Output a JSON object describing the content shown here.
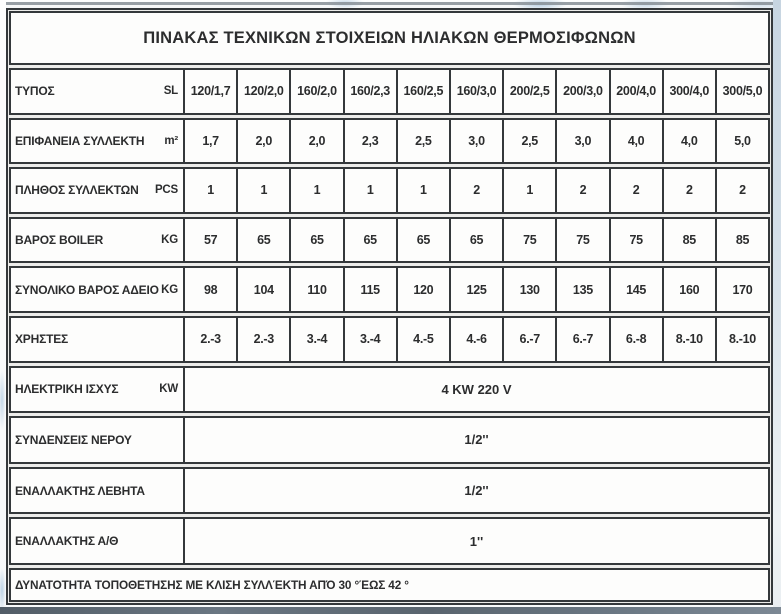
{
  "table": {
    "title": "ΠΙΝΑΚΑΣ ΤΕΧΝΙΚΩΝ ΣΤΟΙΧΕΙΩΝ ΗΛΙΑΚΩΝ ΘΕΡΜΟΣΙΦΩΝΩΝ",
    "rows": [
      {
        "label": "ΤΥΠΟΣ",
        "unit": "SL",
        "values": [
          "120/1,7",
          "120/2,0",
          "160/2,0",
          "160/2,3",
          "160/2,5",
          "160/3,0",
          "200/2,5",
          "200/3,0",
          "200/4,0",
          "300/4,0",
          "300/5,0"
        ]
      },
      {
        "label": "ΕΠΙΦΑΝΕΙΑ ΣΥΛΛΕΚΤΗ",
        "unit": "m²",
        "values": [
          "1,7",
          "2,0",
          "2,0",
          "2,3",
          "2,5",
          "3,0",
          "2,5",
          "3,0",
          "4,0",
          "4,0",
          "5,0"
        ]
      },
      {
        "label": "ΠΛΗΘΟΣ ΣΥΛΛΕΚΤΩΝ",
        "unit": "PCS",
        "values": [
          "1",
          "1",
          "1",
          "1",
          "1",
          "2",
          "1",
          "2",
          "2",
          "2",
          "2"
        ]
      },
      {
        "label": "ΒΑΡΟΣ BOILER",
        "unit": "KG",
        "values": [
          "57",
          "65",
          "65",
          "65",
          "65",
          "65",
          "75",
          "75",
          "75",
          "85",
          "85"
        ]
      },
      {
        "label": "ΣΥΝΟΛΙΚΟ ΒΑΡΟΣ ΑΔΕΙΟ",
        "unit": "KG",
        "values": [
          "98",
          "104",
          "110",
          "115",
          "120",
          "125",
          "130",
          "135",
          "145",
          "160",
          "170"
        ]
      },
      {
        "label": "ΧΡΗΣΤΕΣ",
        "unit": "",
        "values": [
          "2.-3",
          "2.-3",
          "3.-4",
          "3.-4",
          "4.-5",
          "4.-6",
          "6.-7",
          "6.-7",
          "6.-8",
          "8.-10",
          "8.-10"
        ]
      },
      {
        "label": "ΗΛΕΚΤΡΙΚΗ ΙΣΧΥΣ",
        "unit": "KW",
        "value": "4 KW 220 V"
      },
      {
        "label": "ΣΥΝΔΕΝΣΕΙΣ ΝΕΡΟΥ",
        "unit": "",
        "value": "1/2''"
      },
      {
        "label": "ΕΝΑΛΛΑΚΤΗΣ ΛΕΒΗΤΑ",
        "unit": "",
        "value": "1/2''"
      },
      {
        "label": "ΕΝΑΛΛΑΚΤΗΣ Α/Θ",
        "unit": "",
        "value": "1''"
      }
    ],
    "footer": "ΔΥΝΑΤΟΤΗΤΑ ΤΟΠΟΘΕΤΗΣΗΣ ΜΕ ΚΛΙΣΗ ΣΥΛΛΈΚΤΗ ΑΠΌ 30 °ΈΩΣ 42 °"
  }
}
